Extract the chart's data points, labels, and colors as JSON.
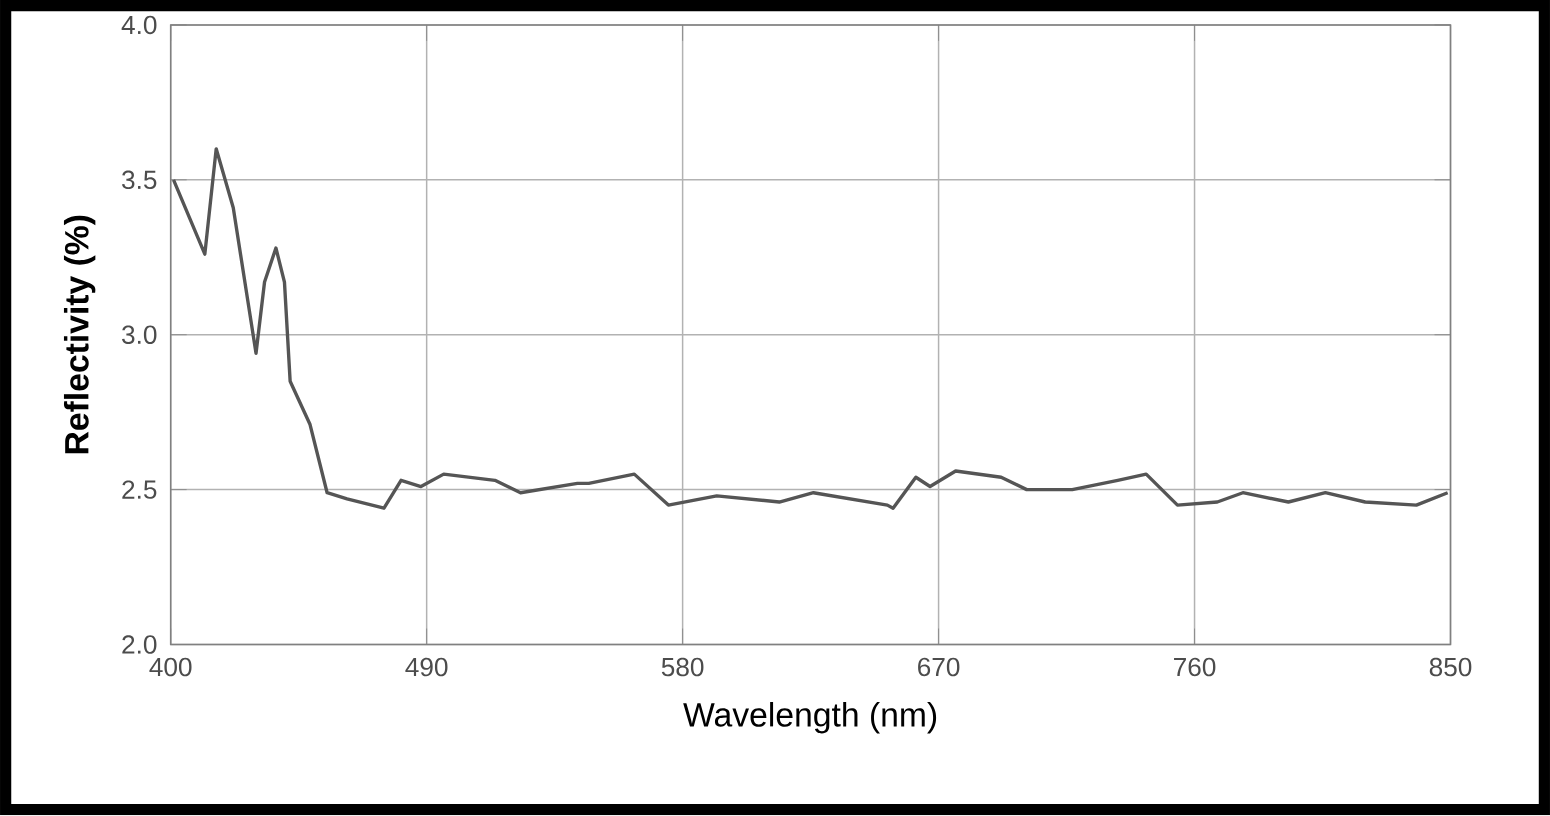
{
  "chart_data": {
    "type": "line",
    "xlabel": "Wavelength (nm)",
    "ylabel": "Reflectivity (%)",
    "x": [
      401,
      412,
      416,
      422,
      430,
      433,
      437,
      440,
      442,
      449,
      455,
      462,
      475,
      481,
      488,
      496,
      514,
      523,
      543,
      547,
      563,
      575,
      592,
      614,
      626,
      652,
      654,
      662,
      667,
      676,
      692,
      701,
      717,
      733,
      743,
      754,
      768,
      777,
      793,
      806,
      820,
      838,
      849
    ],
    "series": [
      {
        "color": "#555555",
        "values": [
          3.5,
          3.26,
          3.6,
          3.41,
          2.94,
          3.17,
          3.28,
          3.17,
          2.85,
          2.71,
          2.49,
          2.47,
          2.44,
          2.53,
          2.51,
          2.55,
          2.53,
          2.49,
          2.52,
          2.52,
          2.55,
          2.45,
          2.48,
          2.46,
          2.49,
          2.45,
          2.44,
          2.54,
          2.51,
          2.56,
          2.54,
          2.5,
          2.5,
          2.53,
          2.55,
          2.45,
          2.46,
          2.49,
          2.46,
          2.49,
          2.46,
          2.45,
          2.49
        ]
      }
    ],
    "xlim": [
      400,
      850
    ],
    "ylim": [
      2.0,
      4.0
    ],
    "xticks": [
      400,
      490,
      580,
      670,
      760,
      850
    ],
    "yticks": [
      {
        "value": 2.0,
        "label": "2.0"
      },
      {
        "value": 2.5,
        "label": "2.5"
      },
      {
        "value": 3.0,
        "label": "3.0"
      },
      {
        "value": 3.5,
        "label": "3.5"
      },
      {
        "value": 4.0,
        "label": "4.0"
      }
    ],
    "grid": true,
    "marker": "none",
    "line_style": "solid"
  }
}
